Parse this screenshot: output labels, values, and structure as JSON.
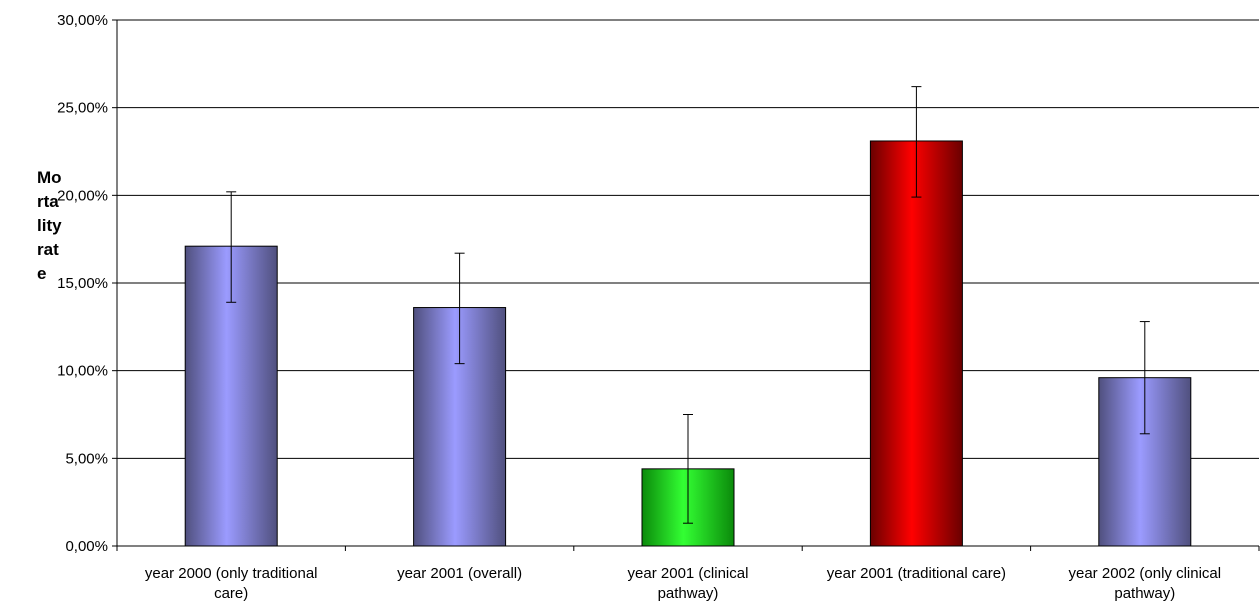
{
  "chart_data": {
    "type": "bar",
    "title": "",
    "xlabel": "",
    "ylabel_lines": [
      "Mo",
      "rta",
      "lity",
      "rat",
      "e"
    ],
    "ylim": [
      0,
      30
    ],
    "yticks": [
      0,
      5,
      10,
      15,
      20,
      25,
      30
    ],
    "ytick_labels": [
      "0,00%",
      "5,00%",
      "10,00%",
      "15,00%",
      "20,00%",
      "25,00%",
      "30,00%"
    ],
    "grid": true,
    "legend": "none",
    "categories": [
      [
        "year 2000 (only traditional",
        "care)"
      ],
      [
        "year 2001 (overall)"
      ],
      [
        "year 2001 (clinical",
        "pathway)"
      ],
      [
        "year 2001 (traditional care)"
      ],
      [
        "year 2002 (only  clinical",
        "pathway)"
      ]
    ],
    "values": [
      17.1,
      13.6,
      4.4,
      23.1,
      9.6
    ],
    "error_upper": [
      20.2,
      16.7,
      7.5,
      26.2,
      12.8
    ],
    "error_lower": [
      13.9,
      10.4,
      1.3,
      19.9,
      6.4
    ],
    "bar_colors": [
      [
        "#50507e",
        "#9b9bff"
      ],
      [
        "#50507e",
        "#9b9bff"
      ],
      [
        "#0b8a0b",
        "#33ff33"
      ],
      [
        "#6a0000",
        "#ff0000"
      ],
      [
        "#50507e",
        "#9b9bff"
      ]
    ]
  }
}
